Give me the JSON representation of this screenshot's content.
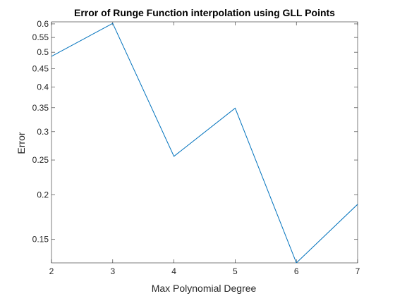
{
  "chart_data": {
    "type": "line",
    "title": "Error of Runge Function interpolation using GLL Points",
    "xlabel": "Max Polynomial Degree",
    "ylabel": "Error",
    "x": [
      2,
      3,
      4,
      5,
      6,
      7
    ],
    "series": [
      {
        "values": [
          0.487,
          0.602,
          0.256,
          0.349,
          0.129,
          0.188
        ]
      }
    ],
    "xlim": [
      2,
      7
    ],
    "ylim": [
      0.129,
      0.608
    ],
    "yscale": "log",
    "x_ticks": [
      2,
      3,
      4,
      5,
      6,
      7
    ],
    "x_tick_labels": [
      "2",
      "3",
      "4",
      "5",
      "6",
      "7"
    ],
    "y_ticks": [
      0.15,
      0.2,
      0.25,
      0.3,
      0.35,
      0.4,
      0.45,
      0.5,
      0.55,
      0.6
    ],
    "y_tick_labels": [
      "0.15",
      "0.2",
      "0.25",
      "0.3",
      "0.35",
      "0.4",
      "0.45",
      "0.5",
      "0.55",
      "0.6"
    ],
    "grid": false,
    "line_color": "#0072BD"
  }
}
